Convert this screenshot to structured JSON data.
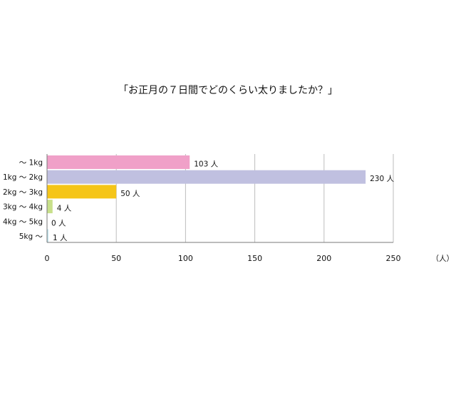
{
  "chart_data": {
    "type": "bar",
    "orientation": "horizontal",
    "title": "「お正月の７日間でどのくらい太りましたか？」",
    "categories": [
      "〜 1kg",
      "1kg 〜 2kg",
      "2kg 〜 3kg",
      "3kg 〜 4kg",
      "4kg 〜 5kg",
      "5kg 〜"
    ],
    "values": [
      103,
      230,
      50,
      4,
      0,
      1
    ],
    "data_labels": [
      "103 人",
      "230 人",
      "50 人",
      "4 人",
      "0 人",
      "1 人"
    ],
    "colors": [
      "#f0a0c8",
      "#c0c0e0",
      "#f5c518",
      "#c8e08a",
      "#f4c0d8",
      "#c0e6f0"
    ],
    "xlim": [
      0,
      250
    ],
    "x_ticks": [
      0,
      50,
      100,
      150,
      200,
      250
    ],
    "x_tick_labels": [
      "0",
      "50",
      "100",
      "150",
      "200",
      "250"
    ],
    "xunit": "（人）",
    "xlabel": "",
    "ylabel": "",
    "grid": true,
    "legend": "none"
  }
}
